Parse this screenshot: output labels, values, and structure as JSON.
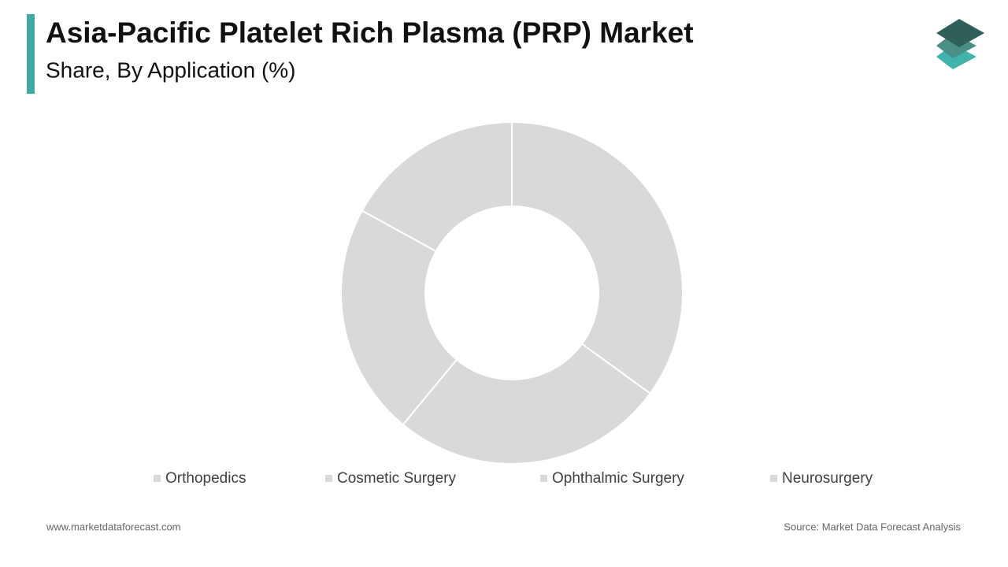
{
  "chart_data": {
    "type": "donut",
    "title": "Asia-Pacific Platelet Rich Plasma (PRP) Market",
    "subtitle": "Share, By Application  (%)",
    "categories": [
      "Orthopedics",
      "Cosmetic Surgery",
      "Ophthalmic Surgery",
      "Neurosurgery"
    ],
    "values": [
      35,
      26,
      22,
      17
    ],
    "color": "#d9d9d9",
    "legend": "bottom",
    "footer_left": "www.marketdataforecast.com",
    "footer_right": "Source: Market Data Forecast Analysis"
  }
}
